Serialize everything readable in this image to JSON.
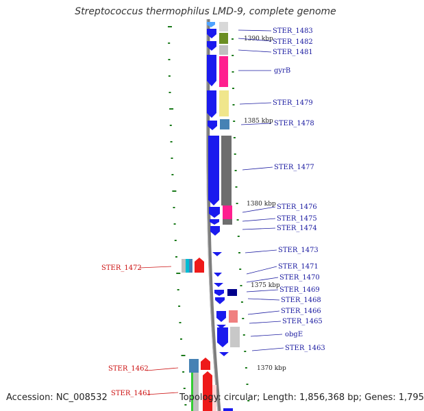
{
  "title": "Streptococcus thermophilus LMD-9, complete genome",
  "accession": "Accession: NC_008532",
  "summary": "Topology: circular; Length: 1,856,368 bp; Genes: 1,795",
  "colors": {
    "backbone": "#8a8a8a",
    "forward_gene": "#1a1aee",
    "reverse_gene": "#ee1a1a",
    "forward_label": "#1a1aa0",
    "reverse_label": "#cc1111",
    "tick": "#1a7a1a"
  },
  "scale_labels": [
    {
      "text": "1390 kbp"
    },
    {
      "text": "1385 kbp"
    },
    {
      "text": "1380 kbp"
    },
    {
      "text": "1375 kbp"
    },
    {
      "text": "1370 kbp"
    }
  ],
  "forward_genes": [
    {
      "label": "STER_1483",
      "cog_color": "#bdbdbd"
    },
    {
      "label": "STER_1482",
      "cog_color": "#6b8e23"
    },
    {
      "label": "STER_1481",
      "cog_color": "#bdbdbd"
    },
    {
      "label": "gyrB",
      "cog_color": "#ff1f8f"
    },
    {
      "label": "STER_1479",
      "cog_color": "#f0e68c"
    },
    {
      "label": "STER_1478",
      "cog_color": "#4682b4"
    },
    {
      "label": "STER_1477",
      "cog_color": "#696969"
    },
    {
      "label": "STER_1476",
      "cog_color": "#ff1f8f"
    },
    {
      "label": "STER_1475",
      "cog_color": null
    },
    {
      "label": "STER_1474",
      "cog_color": null
    },
    {
      "label": "STER_1473",
      "cog_color": null
    },
    {
      "label": "STER_1471",
      "cog_color": null
    },
    {
      "label": "STER_1470",
      "cog_color": null
    },
    {
      "label": "STER_1469",
      "cog_color": "#00008b"
    },
    {
      "label": "STER_1468",
      "cog_color": null
    },
    {
      "label": "STER_1466",
      "cog_color": "#f08080"
    },
    {
      "label": "STER_1465",
      "cog_color": null
    },
    {
      "label": "obgE",
      "cog_color": "#c8c8c8"
    },
    {
      "label": "STER_1463",
      "cog_color": null
    }
  ],
  "reverse_genes": [
    {
      "label": "STER_1472",
      "cog_color": "#00bcd4"
    },
    {
      "label": "STER_1462",
      "cog_color": "#4682b4"
    },
    {
      "label": "STER_1461",
      "cog_color": "#32cd32"
    }
  ]
}
